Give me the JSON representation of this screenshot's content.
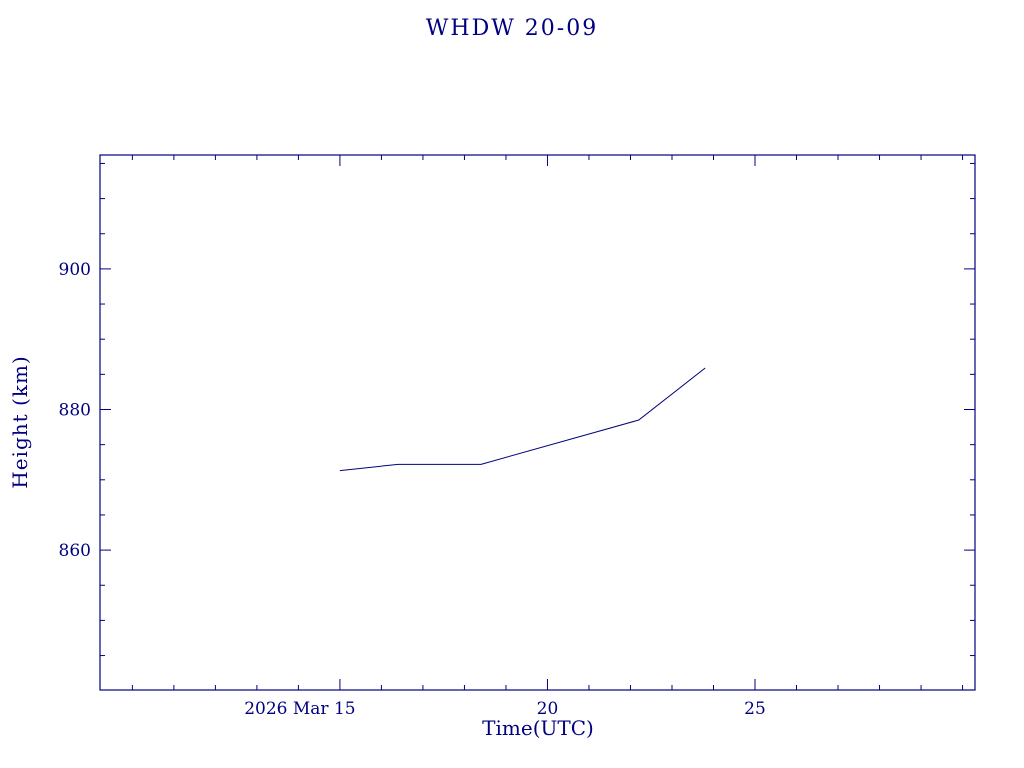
{
  "chart_data": {
    "type": "line",
    "title": "WHDW 20-09",
    "xlabel": "Time(UTC)",
    "ylabel": "Height (km)",
    "x": [
      15.0,
      16.4,
      18.4,
      22.2,
      23.8
    ],
    "y": [
      871.3,
      872.2,
      872.2,
      878.5,
      885.9
    ],
    "xlim": [
      9.22,
      30.3
    ],
    "ylim": [
      840.1,
      916.2
    ],
    "xticks": [
      15,
      20,
      25
    ],
    "xtick_labels": [
      "2026 Mar 15",
      "20",
      "25"
    ],
    "xtick_label_offsets": [
      -40,
      0,
      0
    ],
    "x_minor_step": 1,
    "yticks": [
      860,
      880,
      900
    ],
    "ytick_labels": [
      "860",
      "880",
      "900"
    ],
    "y_minor_step": 5,
    "grid": false,
    "line_color": "#000080",
    "frame_color": "#000080"
  }
}
